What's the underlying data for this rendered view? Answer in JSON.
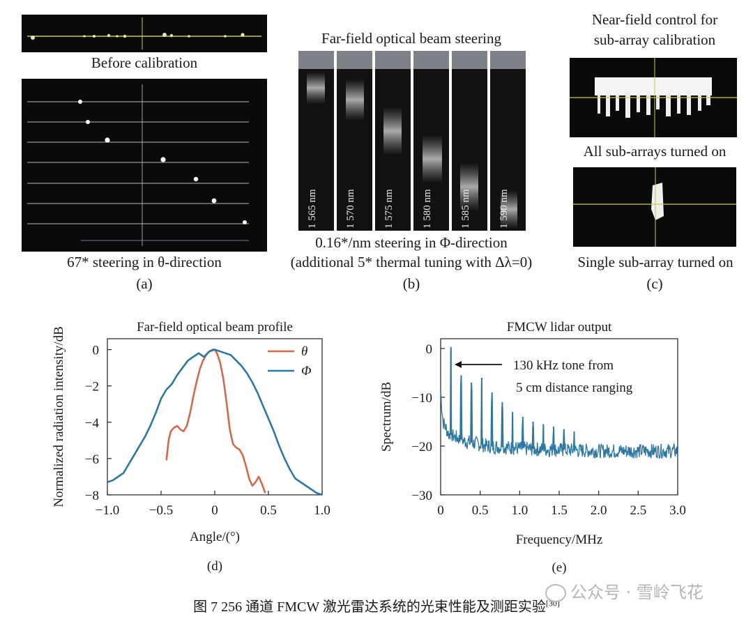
{
  "panel_a": {
    "caption_top": "Before calibration",
    "caption_bottom": "67* steering in θ-direction",
    "letter": "(a)"
  },
  "panel_b": {
    "title": "Far-field optical beam steering",
    "wavelengths": [
      "1 565 nm",
      "1 570 nm",
      "1 575 nm",
      "1 580 nm",
      "1 585 nm",
      "1 590 nm"
    ],
    "caption_line1": "0.16*/nm steering in Φ-direction",
    "caption_line2": "(additional 5* thermal tuning with Δλ=0)",
    "letter": "(b)"
  },
  "panel_c": {
    "title_line1": "Near-field control for",
    "title_line2": "sub-array calibration",
    "caption_mid": "All sub-arrays turned on",
    "caption_bottom": "Single sub-array turned on",
    "letter": "(c)"
  },
  "panel_d": {
    "letter": "(d)",
    "chart_data": {
      "type": "line",
      "title": "Far-field optical beam profile",
      "xlabel": "Angle/(°)",
      "ylabel": "Normalized radiation intensity/dB",
      "xlim": [
        -1.0,
        1.0
      ],
      "ylim": [
        -8,
        0.6
      ],
      "xticks": [
        "−1.0",
        "−0.5",
        "0",
        "0.5",
        "1.0"
      ],
      "yticks": [
        "0",
        "−2",
        "−4",
        "−6",
        "−8"
      ],
      "legend_position": "top-right",
      "series": [
        {
          "name": "θ",
          "color": "#d2694a",
          "x": [
            -0.45,
            -0.43,
            -0.41,
            -0.38,
            -0.35,
            -0.32,
            -0.29,
            -0.26,
            -0.23,
            -0.2,
            -0.17,
            -0.14,
            -0.11,
            -0.08,
            -0.05,
            -0.02,
            0.0,
            0.02,
            0.05,
            0.08,
            0.11,
            0.14,
            0.17,
            0.2,
            0.23,
            0.26,
            0.29,
            0.32,
            0.35,
            0.38,
            0.41,
            0.44,
            0.47
          ],
          "y": [
            -6.1,
            -5.0,
            -4.5,
            -4.3,
            -4.2,
            -4.4,
            -4.5,
            -4.2,
            -3.5,
            -2.6,
            -1.8,
            -1.1,
            -0.6,
            -0.3,
            -0.1,
            0.0,
            0.0,
            -0.2,
            -0.7,
            -1.6,
            -2.9,
            -4.4,
            -5.2,
            -5.4,
            -5.5,
            -5.8,
            -6.4,
            -7.1,
            -7.5,
            -7.3,
            -7.0,
            -7.4,
            -7.9
          ]
        },
        {
          "name": "Φ",
          "color": "#2e77a0",
          "x": [
            -1.0,
            -0.95,
            -0.9,
            -0.85,
            -0.8,
            -0.75,
            -0.7,
            -0.65,
            -0.6,
            -0.55,
            -0.5,
            -0.45,
            -0.4,
            -0.35,
            -0.3,
            -0.25,
            -0.2,
            -0.15,
            -0.1,
            -0.05,
            0.0,
            0.05,
            0.1,
            0.15,
            0.2,
            0.25,
            0.3,
            0.35,
            0.4,
            0.45,
            0.5,
            0.55,
            0.6,
            0.65,
            0.7,
            0.75,
            0.8,
            0.85,
            0.9,
            0.95,
            1.0
          ],
          "y": [
            -7.3,
            -7.2,
            -7.0,
            -6.8,
            -6.3,
            -5.8,
            -5.3,
            -4.8,
            -4.2,
            -3.5,
            -2.7,
            -2.2,
            -1.9,
            -1.4,
            -1.0,
            -0.6,
            -0.4,
            -0.2,
            -0.4,
            -0.1,
            0.0,
            -0.1,
            -0.2,
            -0.3,
            -0.6,
            -0.9,
            -1.3,
            -1.8,
            -2.4,
            -3.1,
            -3.8,
            -4.5,
            -5.3,
            -6.0,
            -6.6,
            -7.1,
            -7.3,
            -7.5,
            -7.7,
            -7.9,
            -8.0
          ]
        }
      ]
    }
  },
  "panel_e": {
    "letter": "(e)",
    "annotation_line1": "130 kHz tone from",
    "annotation_line2": "5 cm distance ranging",
    "chart_data": {
      "type": "line",
      "title": "FMCW lidar output",
      "xlabel": "Frequency/MHz",
      "ylabel": "Spectrum/dB",
      "xlim": [
        0,
        3.0
      ],
      "ylim": [
        -30,
        2
      ],
      "xticks": [
        "0",
        "0.5",
        "1.0",
        "1.5",
        "2.0",
        "2.5",
        "3.0"
      ],
      "yticks": [
        "0",
        "−10",
        "−20",
        "−30"
      ],
      "baseline": [
        [
          0,
          -9
        ],
        [
          0.03,
          -15
        ],
        [
          0.1,
          -17.5
        ],
        [
          0.3,
          -19
        ],
        [
          0.6,
          -20
        ],
        [
          1.0,
          -20.5
        ],
        [
          1.5,
          -20.8
        ],
        [
          2.0,
          -21
        ],
        [
          2.5,
          -21
        ],
        [
          3.0,
          -21
        ]
      ],
      "peaks": [
        {
          "x": 0.13,
          "y": 0.3
        },
        {
          "x": 0.26,
          "y": -5.5
        },
        {
          "x": 0.39,
          "y": -7
        },
        {
          "x": 0.52,
          "y": -6
        },
        {
          "x": 0.65,
          "y": -9
        },
        {
          "x": 0.78,
          "y": -11
        },
        {
          "x": 0.91,
          "y": -13
        },
        {
          "x": 1.04,
          "y": -14
        },
        {
          "x": 1.17,
          "y": -15
        },
        {
          "x": 1.3,
          "y": -15.5
        },
        {
          "x": 1.43,
          "y": -16
        },
        {
          "x": 1.56,
          "y": -16.5
        },
        {
          "x": 1.69,
          "y": -17
        }
      ],
      "color": "#2e77a0"
    }
  },
  "figure_caption": "图 7  256 通道 FMCW 激光雷达系统的光束性能及测距实验",
  "figure_ref": "[30]",
  "watermark": "公众号 · 雪岭飞花"
}
